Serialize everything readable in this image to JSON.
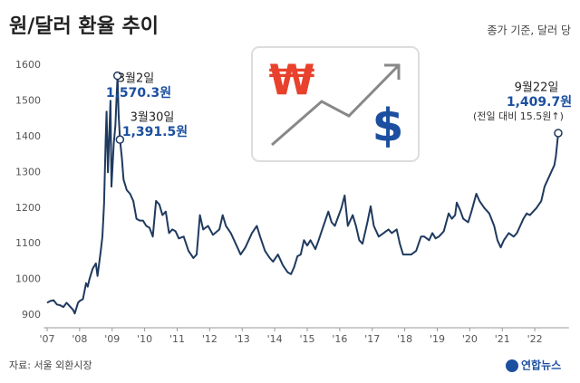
{
  "chart_data": {
    "type": "line",
    "title": "원/달러 환율 추이",
    "subtitle": "종가 기준, 달러 당",
    "source": "자료: 서울 외환시장",
    "logo": "연합뉴스",
    "color": "#1f3a5f",
    "xlim": [
      2006.9,
      2023.05
    ],
    "ylim": [
      865,
      1630
    ],
    "yticks": [
      900,
      1000,
      1100,
      1200,
      1300,
      1400,
      1500,
      1600
    ],
    "xticks": [
      {
        "value": 2007,
        "label": "'07"
      },
      {
        "value": 2008,
        "label": "'08"
      },
      {
        "value": 2009,
        "label": "'09"
      },
      {
        "value": 2010,
        "label": "'10"
      },
      {
        "value": 2011,
        "label": "'11"
      },
      {
        "value": 2012,
        "label": "'12"
      },
      {
        "value": 2013,
        "label": "'13"
      },
      {
        "value": 2014,
        "label": "'14"
      },
      {
        "value": 2015,
        "label": "'15"
      },
      {
        "value": 2016,
        "label": "'16"
      },
      {
        "value": 2017,
        "label": "'17"
      },
      {
        "value": 2018,
        "label": "'18"
      },
      {
        "value": 2019,
        "label": "'19"
      },
      {
        "value": 2020,
        "label": "'20"
      },
      {
        "value": 2021,
        "label": "'21"
      },
      {
        "value": 2022,
        "label": "'22"
      }
    ],
    "x": [
      2007.0,
      2007.1,
      2007.2,
      2007.3,
      2007.4,
      2007.5,
      2007.6,
      2007.7,
      2007.8,
      2007.85,
      2007.95,
      2008.0,
      2008.1,
      2008.2,
      2008.25,
      2008.3,
      2008.4,
      2008.5,
      2008.55,
      2008.65,
      2008.7,
      2008.75,
      2008.8,
      2008.83,
      2008.87,
      2008.9,
      2008.95,
      2008.98,
      2009.05,
      2009.1,
      2009.167,
      2009.2,
      2009.24,
      2009.3,
      2009.35,
      2009.45,
      2009.55,
      2009.65,
      2009.75,
      2009.85,
      2009.95,
      2010.05,
      2010.15,
      2010.25,
      2010.35,
      2010.45,
      2010.55,
      2010.65,
      2010.75,
      2010.85,
      2010.95,
      2011.05,
      2011.2,
      2011.35,
      2011.5,
      2011.6,
      2011.7,
      2011.8,
      2011.95,
      2012.1,
      2012.3,
      2012.4,
      2012.5,
      2012.65,
      2012.8,
      2012.95,
      2013.1,
      2013.2,
      2013.3,
      2013.45,
      2013.55,
      2013.7,
      2013.85,
      2013.95,
      2014.1,
      2014.25,
      2014.4,
      2014.5,
      2014.6,
      2014.7,
      2014.8,
      2014.9,
      2015.0,
      2015.1,
      2015.25,
      2015.35,
      2015.5,
      2015.65,
      2015.75,
      2015.85,
      2015.95,
      2016.05,
      2016.15,
      2016.25,
      2016.4,
      2016.5,
      2016.6,
      2016.7,
      2016.85,
      2016.95,
      2017.05,
      2017.2,
      2017.35,
      2017.5,
      2017.6,
      2017.75,
      2017.85,
      2017.95,
      2018.05,
      2018.2,
      2018.35,
      2018.5,
      2018.6,
      2018.75,
      2018.85,
      2018.95,
      2019.05,
      2019.2,
      2019.35,
      2019.45,
      2019.55,
      2019.6,
      2019.7,
      2019.8,
      2019.95,
      2020.05,
      2020.2,
      2020.3,
      2020.45,
      2020.6,
      2020.75,
      2020.85,
      2020.95,
      2021.05,
      2021.2,
      2021.35,
      2021.45,
      2021.55,
      2021.65,
      2021.75,
      2021.85,
      2021.95,
      2022.05,
      2022.2,
      2022.3,
      2022.4,
      2022.5,
      2022.6,
      2022.65,
      2022.7,
      2022.72
    ],
    "values": [
      935,
      940,
      942,
      930,
      928,
      923,
      935,
      925,
      915,
      905,
      935,
      940,
      945,
      990,
      980,
      1000,
      1030,
      1045,
      1010,
      1080,
      1120,
      1210,
      1390,
      1470,
      1300,
      1380,
      1500,
      1260,
      1380,
      1430,
      1570.3,
      1460,
      1391.5,
      1340,
      1280,
      1250,
      1240,
      1220,
      1170,
      1165,
      1165,
      1150,
      1145,
      1120,
      1220,
      1210,
      1180,
      1190,
      1130,
      1140,
      1135,
      1115,
      1120,
      1080,
      1060,
      1070,
      1180,
      1140,
      1150,
      1125,
      1140,
      1180,
      1150,
      1130,
      1100,
      1070,
      1090,
      1110,
      1130,
      1150,
      1120,
      1080,
      1060,
      1050,
      1070,
      1040,
      1020,
      1015,
      1035,
      1065,
      1070,
      1110,
      1095,
      1110,
      1085,
      1110,
      1150,
      1190,
      1160,
      1150,
      1175,
      1200,
      1235,
      1150,
      1180,
      1150,
      1110,
      1100,
      1160,
      1205,
      1150,
      1120,
      1130,
      1140,
      1130,
      1140,
      1100,
      1070,
      1070,
      1070,
      1080,
      1120,
      1120,
      1110,
      1130,
      1115,
      1120,
      1135,
      1185,
      1170,
      1180,
      1215,
      1195,
      1170,
      1160,
      1190,
      1240,
      1220,
      1200,
      1185,
      1150,
      1110,
      1090,
      1110,
      1130,
      1120,
      1130,
      1150,
      1170,
      1185,
      1180,
      1190,
      1200,
      1220,
      1260,
      1280,
      1300,
      1320,
      1345,
      1390,
      1409.7
    ],
    "annotations": [
      {
        "date": "3월2일",
        "value_label": "1,570.3원",
        "x": 2009.167,
        "y": 1570.3
      },
      {
        "date": "3월30일",
        "value_label": "1,391.5원",
        "x": 2009.24,
        "y": 1391.5
      },
      {
        "date": "9월22일",
        "value_label": "1,409.7원",
        "note": "(전일 대비 15.5원↑)",
        "x": 2022.72,
        "y": 1409.7
      }
    ]
  }
}
